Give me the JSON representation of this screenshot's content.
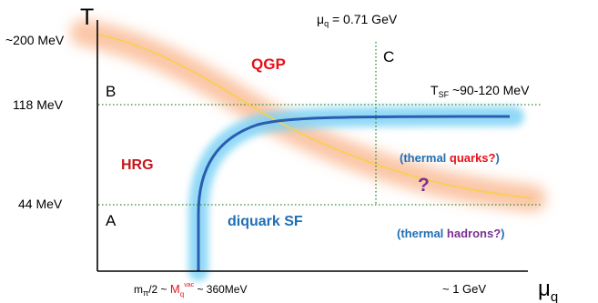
{
  "axes": {
    "y_label": "T",
    "x_label_main": "μ",
    "x_label_sub": "q"
  },
  "y_ticks": {
    "t200": "~200 MeV",
    "t118": "118 MeV",
    "t44": "44 MeV"
  },
  "x_ticks": {
    "left_main": "m",
    "left_pi": "π",
    "left_mid": "/2 ~ ",
    "mq": "M",
    "mq_sub": "q",
    "mq_sup": "vac",
    "left_tail": " ~ 360MeV",
    "right": "~ 1 GeV"
  },
  "mu_line": {
    "main": "μ",
    "sub": "q",
    "rest": " = 0.71 GeV"
  },
  "tsf": {
    "main": "T",
    "sub": "SF",
    "rest": " ~90-120 MeV"
  },
  "points": {
    "A": "A",
    "B": "B",
    "C": "C"
  },
  "regions": {
    "qgp": "QGP",
    "hrg": "HRG",
    "diquark": "diquark SF",
    "question": "?"
  },
  "notes": {
    "thermal_quarks_open": "(thermal ",
    "thermal_quarks_word": "quarks?",
    "thermal_quarks_close": ")",
    "thermal_hadrons_open": "(thermal ",
    "thermal_hadrons_word": "hadrons?",
    "thermal_hadrons_close": ")"
  },
  "colors": {
    "qgp": "#e8101a",
    "hrg": "#c5161c",
    "blue": "#1f6fb5",
    "purple": "#7a2f94",
    "grid": "#2e8b2e",
    "crossover": "#f5d24a",
    "halo_orange": "#f9b48a",
    "halo_blue": "#7fd3f5",
    "sf_line": "#2a5db0"
  }
}
